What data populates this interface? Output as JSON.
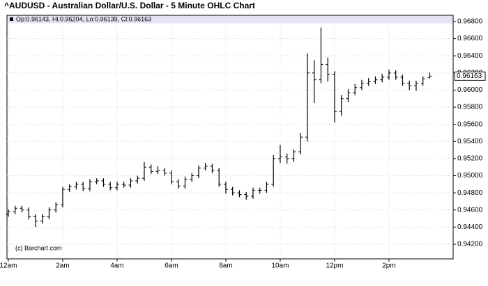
{
  "chart_data": {
    "type": "ohlc",
    "title": "^AUDUSD - Australian Dollar/U.S. Dollar - 5 Minute OHLC Chart",
    "legend_text": "Op:0.96143, Hi:0.96204, Lo:0.96139, Cl:0.96163",
    "watermark": "(c) Barchart.com",
    "color": "#000000",
    "grid": true,
    "last_price": 0.96163,
    "x": [
      0,
      0.25,
      0.5,
      0.75,
      1,
      1.25,
      1.5,
      1.75,
      2,
      2.25,
      2.5,
      2.75,
      3,
      3.25,
      3.5,
      3.75,
      4,
      4.25,
      4.5,
      4.75,
      5,
      5.25,
      5.5,
      5.75,
      6,
      6.25,
      6.5,
      6.75,
      7,
      7.25,
      7.5,
      7.75,
      8,
      8.25,
      8.5,
      8.75,
      9,
      9.25,
      9.5,
      9.75,
      10,
      10.25,
      10.5,
      10.75,
      11,
      11.25,
      11.5,
      11.75,
      12,
      12.25,
      12.5,
      12.75,
      13,
      13.25,
      13.5,
      13.75,
      14,
      14.25,
      14.5,
      14.75,
      15,
      15.25,
      15.5
    ],
    "open": [
      0.9455,
      0.9458,
      0.9462,
      0.946,
      0.9452,
      0.9447,
      0.9452,
      0.946,
      0.9466,
      0.9484,
      0.9487,
      0.949,
      0.9485,
      0.9493,
      0.9494,
      0.949,
      0.9486,
      0.949,
      0.9489,
      0.9494,
      0.9497,
      0.951,
      0.9505,
      0.9506,
      0.9503,
      0.9493,
      0.9488,
      0.9496,
      0.95,
      0.9509,
      0.9511,
      0.9506,
      0.949,
      0.9484,
      0.948,
      0.9478,
      0.9476,
      0.9483,
      0.9483,
      0.949,
      0.952,
      0.9522,
      0.952,
      0.9528,
      0.9545,
      0.962,
      0.9612,
      0.963,
      0.9618,
      0.9575,
      0.959,
      0.9597,
      0.9603,
      0.9608,
      0.961,
      0.9612,
      0.9615,
      0.962,
      0.9615,
      0.9608,
      0.9605,
      0.9608,
      0.96143
    ],
    "high": [
      0.9461,
      0.9465,
      0.9465,
      0.9463,
      0.9455,
      0.9455,
      0.9463,
      0.9469,
      0.9487,
      0.949,
      0.9493,
      0.9493,
      0.9496,
      0.9497,
      0.9497,
      0.9493,
      0.9493,
      0.9493,
      0.9497,
      0.95,
      0.9516,
      0.9513,
      0.9511,
      0.9509,
      0.9506,
      0.9496,
      0.9499,
      0.9503,
      0.9512,
      0.9515,
      0.9514,
      0.9509,
      0.9493,
      0.9487,
      0.9483,
      0.9481,
      0.9486,
      0.9486,
      0.9493,
      0.9524,
      0.9536,
      0.9526,
      0.9531,
      0.955,
      0.9643,
      0.9635,
      0.9673,
      0.9638,
      0.9622,
      0.9594,
      0.9601,
      0.9607,
      0.9612,
      0.9614,
      0.9616,
      0.9619,
      0.9624,
      0.9623,
      0.9618,
      0.9611,
      0.9611,
      0.9616,
      0.96204
    ],
    "low": [
      0.9452,
      0.9455,
      0.9457,
      0.9449,
      0.944,
      0.9444,
      0.9449,
      0.9457,
      0.9463,
      0.9481,
      0.9484,
      0.9482,
      0.9482,
      0.949,
      0.9487,
      0.9483,
      0.9483,
      0.9486,
      0.9486,
      0.9491,
      0.9494,
      0.9502,
      0.9502,
      0.95,
      0.949,
      0.9485,
      0.9485,
      0.9493,
      0.9497,
      0.9506,
      0.9503,
      0.9487,
      0.9479,
      0.9477,
      0.9475,
      0.9472,
      0.9473,
      0.9479,
      0.948,
      0.9487,
      0.9515,
      0.9514,
      0.9516,
      0.9525,
      0.954,
      0.9585,
      0.9608,
      0.961,
      0.9562,
      0.957,
      0.9586,
      0.9594,
      0.96,
      0.9605,
      0.9607,
      0.9609,
      0.9612,
      0.9612,
      0.9605,
      0.96,
      0.9599,
      0.9605,
      0.96139
    ],
    "close": [
      0.9458,
      0.9462,
      0.946,
      0.9452,
      0.9447,
      0.9452,
      0.946,
      0.9466,
      0.9484,
      0.9487,
      0.949,
      0.9485,
      0.9493,
      0.9494,
      0.949,
      0.9486,
      0.949,
      0.9489,
      0.9494,
      0.9497,
      0.951,
      0.9505,
      0.9506,
      0.9503,
      0.9493,
      0.9488,
      0.9496,
      0.95,
      0.9509,
      0.9511,
      0.9506,
      0.949,
      0.9484,
      0.948,
      0.9478,
      0.9476,
      0.9483,
      0.9483,
      0.949,
      0.952,
      0.9522,
      0.952,
      0.9528,
      0.9545,
      0.962,
      0.9612,
      0.963,
      0.9618,
      0.9575,
      0.959,
      0.9597,
      0.9603,
      0.9608,
      0.961,
      0.9612,
      0.9615,
      0.962,
      0.9615,
      0.9608,
      0.9605,
      0.9608,
      0.9613,
      0.96163
    ],
    "xlim": [
      -0.05,
      16.36
    ],
    "xticks": [
      {
        "value": 0,
        "label": "12am"
      },
      {
        "value": 2,
        "label": "2am"
      },
      {
        "value": 4,
        "label": "4am"
      },
      {
        "value": 6,
        "label": "6am"
      },
      {
        "value": 8,
        "label": "8am"
      },
      {
        "value": 10,
        "label": "10am"
      },
      {
        "value": 12,
        "label": "12pm"
      },
      {
        "value": 14,
        "label": "2pm"
      }
    ],
    "ylim": [
      0.94029,
      0.96873
    ],
    "yticks": [
      {
        "value": 0.942,
        "label": "0.94200"
      },
      {
        "value": 0.944,
        "label": "0.94400"
      },
      {
        "value": 0.946,
        "label": "0.94600"
      },
      {
        "value": 0.948,
        "label": "0.94800"
      },
      {
        "value": 0.95,
        "label": "0.95000"
      },
      {
        "value": 0.952,
        "label": "0.95200"
      },
      {
        "value": 0.954,
        "label": "0.95400"
      },
      {
        "value": 0.956,
        "label": "0.95600"
      },
      {
        "value": 0.958,
        "label": "0.95800"
      },
      {
        "value": 0.96,
        "label": "0.96000"
      },
      {
        "value": 0.962,
        "label": "0.96200"
      },
      {
        "value": 0.964,
        "label": "0.96400"
      },
      {
        "value": 0.966,
        "label": "0.96600"
      },
      {
        "value": 0.968,
        "label": "0.96800"
      }
    ]
  }
}
